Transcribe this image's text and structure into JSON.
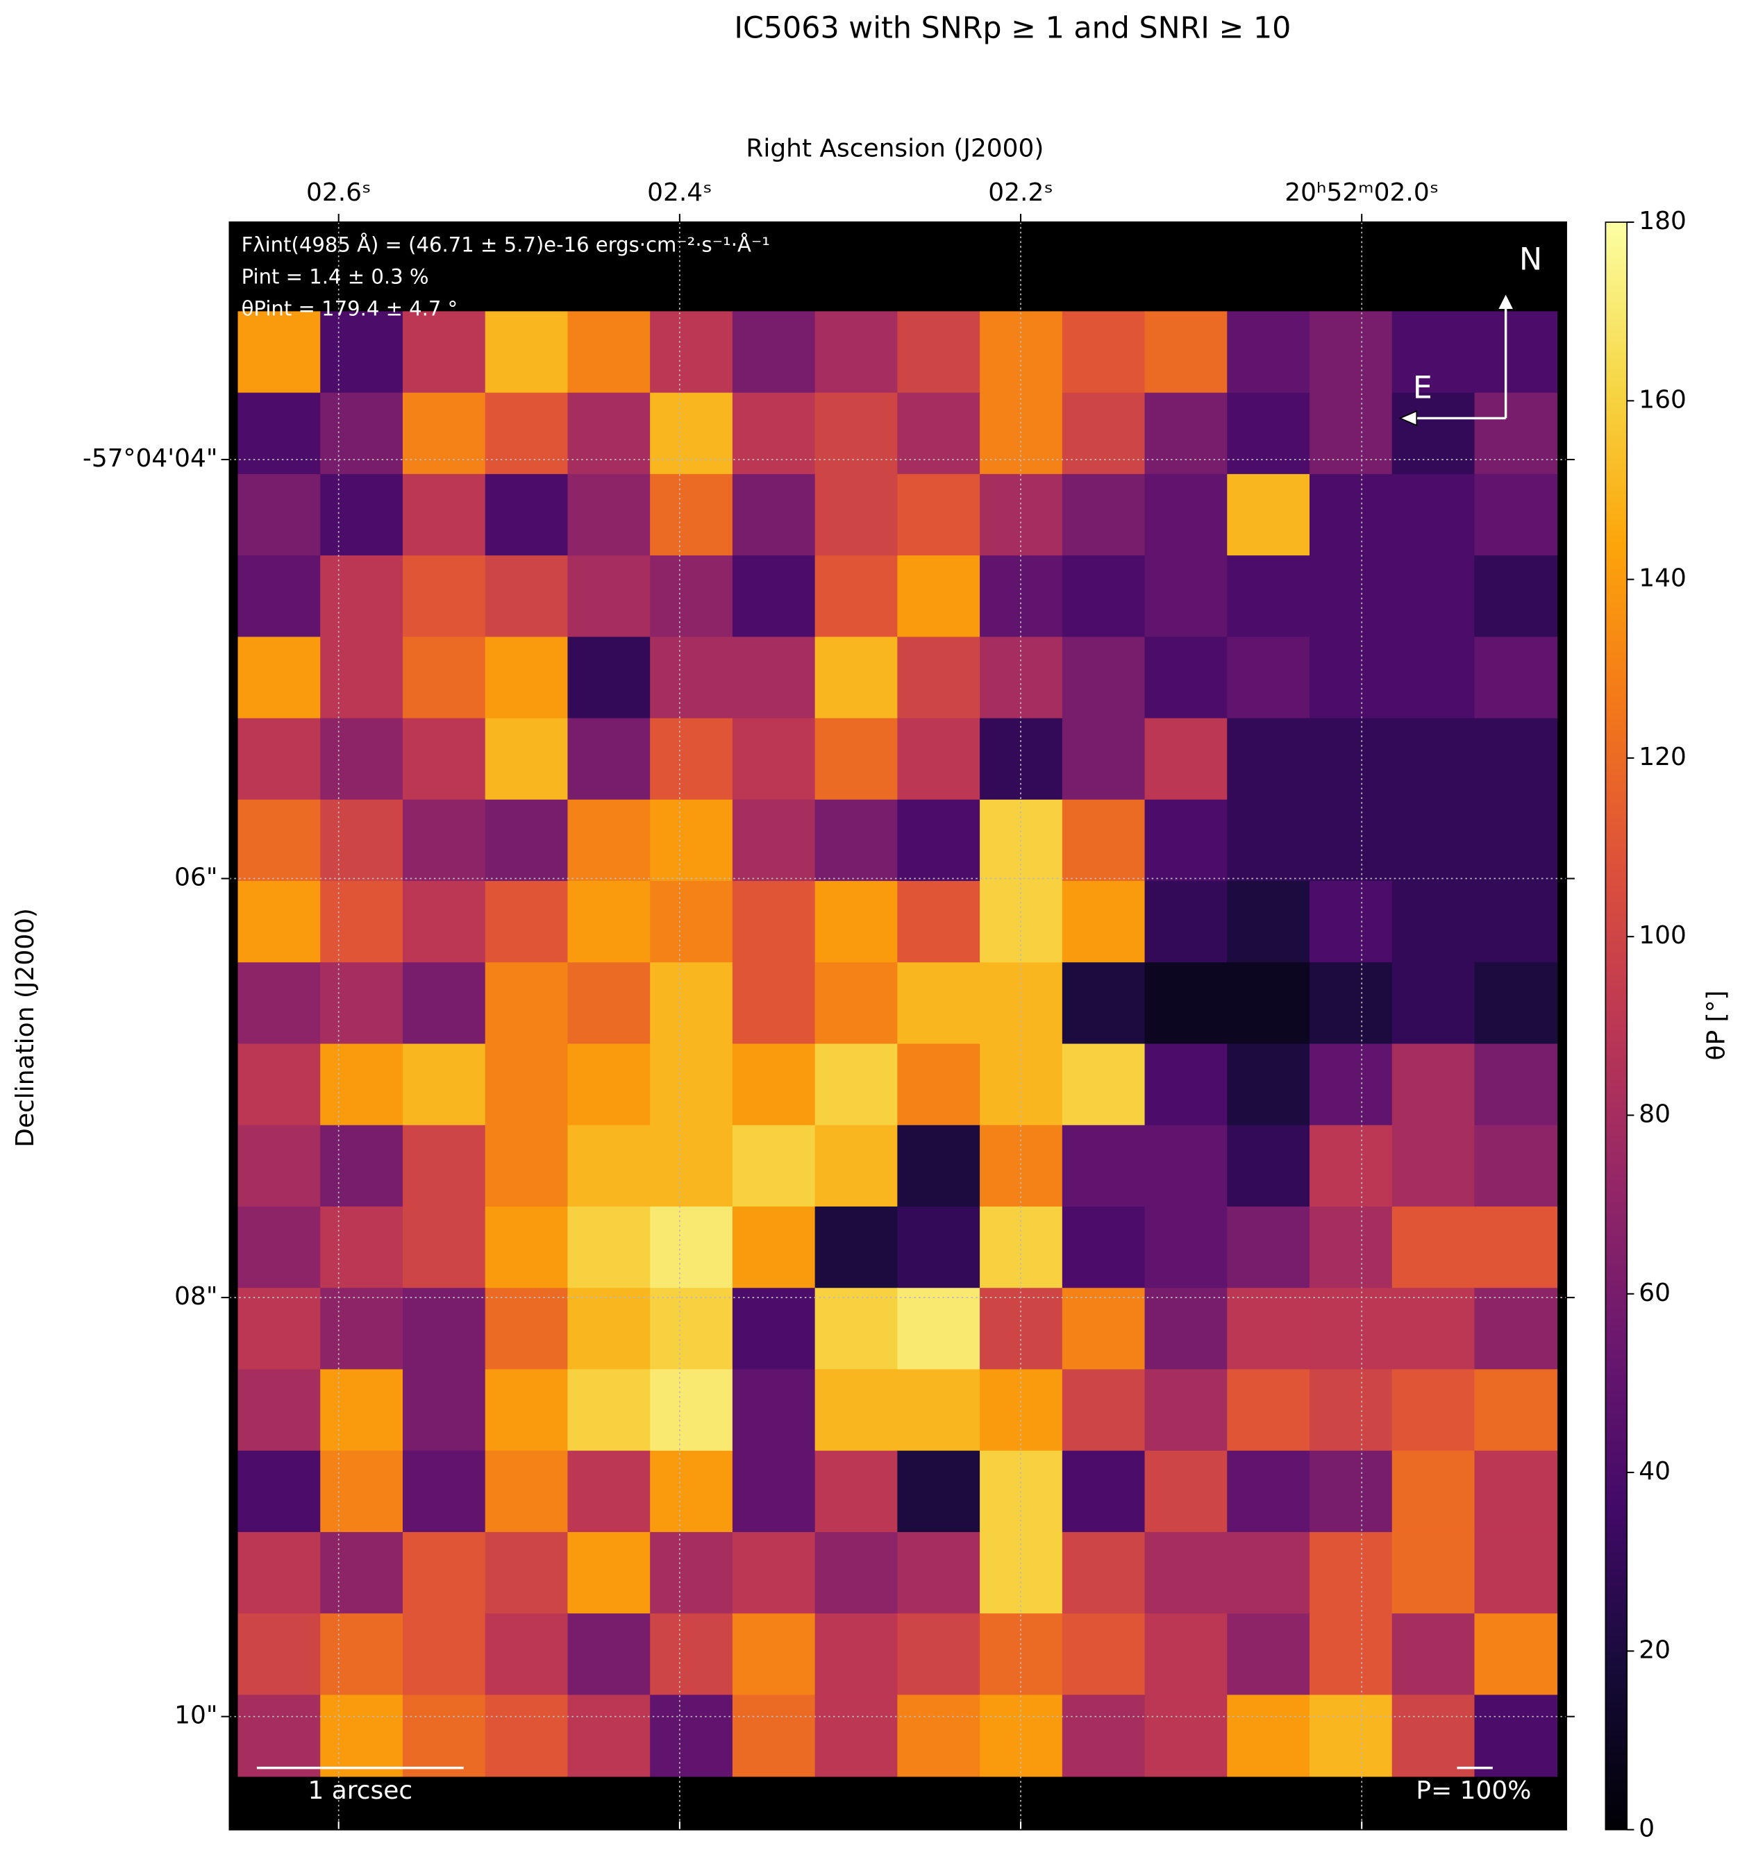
{
  "chart_data": {
    "type": "heatmap",
    "title": "IC5063 with SNRp ≥ 1 and SNRI ≥ 10",
    "x_label": "Right Ascension (J2000)",
    "y_label": "Declination (J2000)",
    "colorbar_label": "θP [°]",
    "colormap": "inferno",
    "annotations": [
      "Fλint(4985 Å) = (46.71 ± 5.7)e-16 ergs·cm⁻²·s⁻¹·Å⁻¹",
      "Pint = 1.4 ± 0.3 %",
      "θPint = 179.4 ± 4.7 °"
    ],
    "compass": [
      "N",
      "E"
    ],
    "scale_bar_label": "1 arcsec",
    "p_reference_label": "P= 100%",
    "xlim": [
      2.664,
      1.88
    ],
    "xticks": [
      {
        "value": 2.6,
        "label": "02.6ˢ"
      },
      {
        "value": 2.4,
        "label": "02.4ˢ"
      },
      {
        "value": 2.2,
        "label": "02.2ˢ"
      },
      {
        "value": 2.0,
        "label": "20ʰ52ᵐ02.0ˢ"
      }
    ],
    "ylim": [
      2.867,
      10.54
    ],
    "yticks": [
      {
        "value": 4,
        "label": "-57°04'04\""
      },
      {
        "value": 6,
        "label": "06\""
      },
      {
        "value": 8,
        "label": "08\""
      },
      {
        "value": 10,
        "label": "10\""
      }
    ],
    "clim": [
      0,
      180
    ],
    "cticks": [
      0,
      20,
      40,
      60,
      80,
      100,
      120,
      140,
      160,
      180
    ],
    "grid": true,
    "z": [
      [
        140,
        40,
        90,
        150,
        130,
        90,
        60,
        80,
        100,
        130,
        110,
        120,
        50,
        60,
        40,
        40
      ],
      [
        40,
        60,
        130,
        110,
        80,
        150,
        90,
        100,
        80,
        130,
        100,
        60,
        40,
        60,
        30,
        60
      ],
      [
        60,
        40,
        90,
        40,
        70,
        120,
        60,
        100,
        110,
        80,
        60,
        50,
        150,
        40,
        40,
        50
      ],
      [
        50,
        90,
        110,
        100,
        80,
        70,
        40,
        110,
        140,
        50,
        40,
        50,
        40,
        40,
        40,
        30
      ],
      [
        140,
        90,
        120,
        140,
        30,
        80,
        80,
        150,
        100,
        80,
        60,
        40,
        50,
        40,
        40,
        50
      ],
      [
        90,
        70,
        90,
        150,
        60,
        110,
        90,
        120,
        90,
        30,
        60,
        90,
        30,
        30,
        30,
        30
      ],
      [
        120,
        100,
        70,
        60,
        130,
        140,
        80,
        60,
        40,
        160,
        120,
        40,
        30,
        30,
        30,
        30
      ],
      [
        140,
        110,
        90,
        110,
        140,
        130,
        110,
        140,
        110,
        160,
        140,
        30,
        20,
        40,
        30,
        30
      ],
      [
        70,
        80,
        60,
        130,
        120,
        150,
        110,
        130,
        150,
        150,
        20,
        10,
        10,
        20,
        30,
        20
      ],
      [
        90,
        140,
        150,
        130,
        140,
        150,
        140,
        160,
        130,
        150,
        160,
        40,
        20,
        50,
        80,
        60
      ],
      [
        80,
        60,
        100,
        130,
        150,
        150,
        160,
        150,
        20,
        130,
        50,
        50,
        30,
        90,
        80,
        70
      ],
      [
        70,
        90,
        100,
        140,
        160,
        170,
        140,
        20,
        30,
        160,
        40,
        50,
        60,
        80,
        110,
        110
      ],
      [
        90,
        70,
        60,
        120,
        150,
        160,
        40,
        160,
        170,
        100,
        130,
        60,
        90,
        90,
        90,
        70
      ],
      [
        80,
        140,
        60,
        140,
        160,
        170,
        50,
        150,
        150,
        140,
        100,
        80,
        110,
        100,
        110,
        120
      ],
      [
        40,
        130,
        50,
        130,
        90,
        140,
        50,
        90,
        20,
        160,
        40,
        100,
        50,
        60,
        120,
        90
      ],
      [
        90,
        70,
        110,
        100,
        140,
        80,
        90,
        70,
        80,
        160,
        100,
        80,
        80,
        110,
        120,
        90
      ],
      [
        100,
        120,
        110,
        90,
        60,
        100,
        130,
        90,
        100,
        120,
        110,
        90,
        70,
        110,
        80,
        130
      ],
      [
        80,
        140,
        120,
        110,
        90,
        50,
        120,
        90,
        130,
        140,
        80,
        90,
        140,
        150,
        100,
        40
      ]
    ]
  }
}
